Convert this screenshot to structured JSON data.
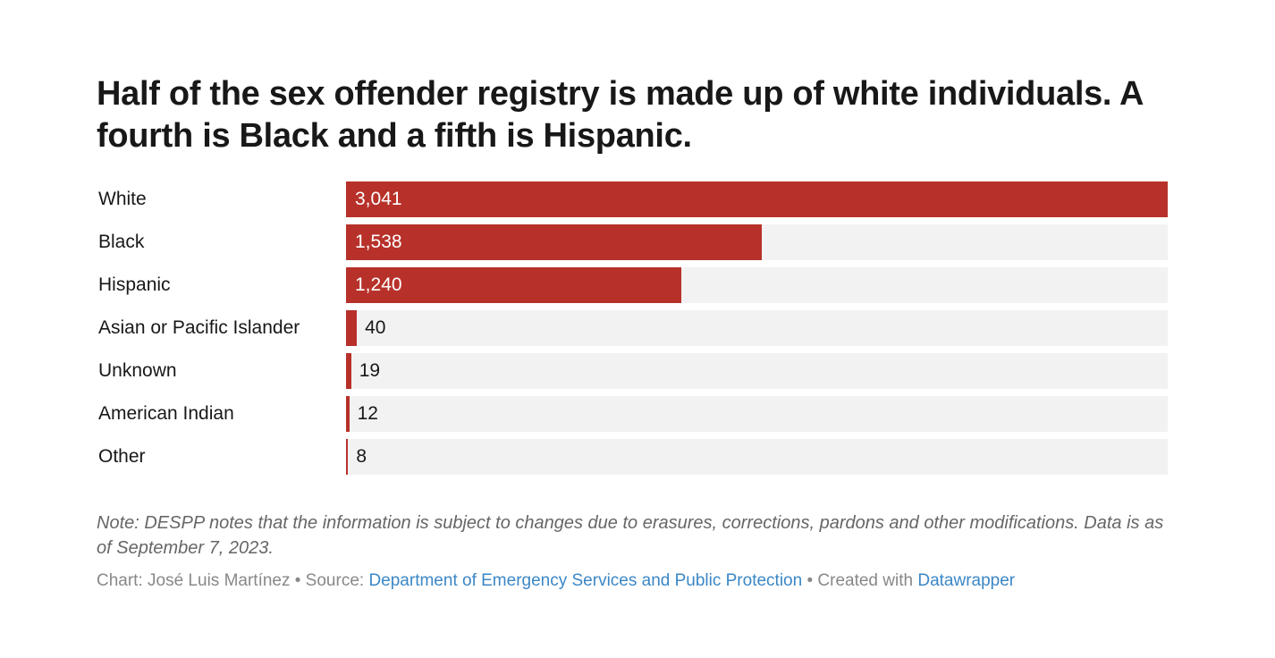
{
  "chart_data": {
    "type": "bar",
    "orientation": "horizontal",
    "title": "Half of the sex offender registry is made up of white individuals. A fourth is Black and a fifth is Hispanic.",
    "categories": [
      "White",
      "Black",
      "Hispanic",
      "Asian or Pacific Islander",
      "Unknown",
      "American Indian",
      "Other"
    ],
    "values": [
      3041,
      1538,
      1240,
      40,
      19,
      12,
      8
    ],
    "value_labels": [
      "3,041",
      "1,538",
      "1,240",
      "40",
      "19",
      "12",
      "8"
    ],
    "xlim": [
      0,
      3041
    ],
    "grid": false,
    "bar_color": "#b7312a",
    "track_color": "#f2f2f2"
  },
  "note": "Note: DESPP notes that the information is subject to changes due to erasures, corrections, pardons and other modifications. Data is as of September 7, 2023.",
  "footer": {
    "chart_prefix": "Chart: José Luis Martínez • Source: ",
    "source": "Department of Emergency Services and Public Protection",
    "created_prefix": " • Created with ",
    "tool": "Datawrapper"
  }
}
